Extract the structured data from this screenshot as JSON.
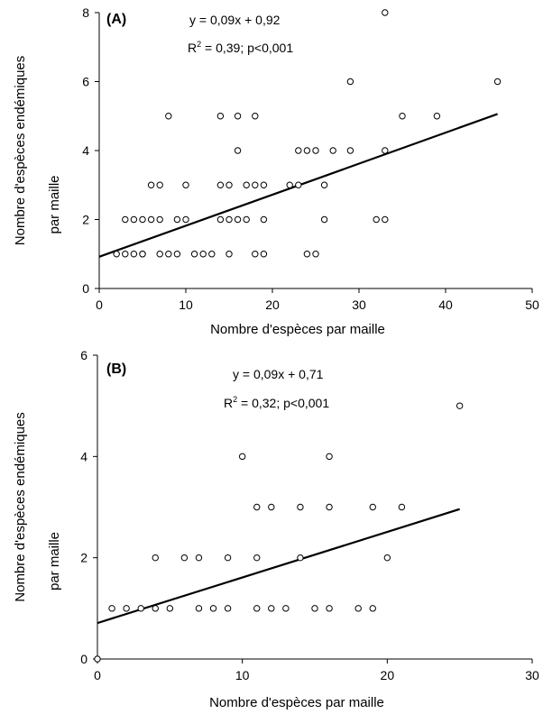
{
  "chart_data": [
    {
      "type": "scatter",
      "panel_label": "(A)",
      "equation": "y = 0,09x + 0,92",
      "r2_label": "R",
      "r2_sup": "2",
      "r2_rest": " = 0,39; p<0,001",
      "xlabel": "Nombre d'espèces par maille",
      "ylabel_line1": "Nombre d'espèces endémiques",
      "ylabel_line2": "par maille",
      "xlim": [
        0,
        50
      ],
      "ylim": [
        0,
        8
      ],
      "xticks": [
        0,
        10,
        20,
        30,
        40,
        50
      ],
      "yticks": [
        0,
        2,
        4,
        6,
        8
      ],
      "grid": false,
      "trendline": {
        "slope": 0.09,
        "intercept": 0.92,
        "x_range": [
          0,
          46
        ]
      },
      "points": [
        [
          2,
          1
        ],
        [
          3,
          1
        ],
        [
          4,
          1
        ],
        [
          5,
          1
        ],
        [
          5,
          1
        ],
        [
          7,
          1
        ],
        [
          8,
          1
        ],
        [
          9,
          1
        ],
        [
          11,
          1
        ],
        [
          12,
          1
        ],
        [
          13,
          1
        ],
        [
          15,
          1
        ],
        [
          18,
          1
        ],
        [
          19,
          1
        ],
        [
          24,
          1
        ],
        [
          25,
          1
        ],
        [
          3,
          2
        ],
        [
          4,
          2
        ],
        [
          5,
          2
        ],
        [
          6,
          2
        ],
        [
          7,
          2
        ],
        [
          9,
          2
        ],
        [
          10,
          2
        ],
        [
          14,
          2
        ],
        [
          15,
          2
        ],
        [
          16,
          2
        ],
        [
          17,
          2
        ],
        [
          19,
          2
        ],
        [
          26,
          2
        ],
        [
          32,
          2
        ],
        [
          33,
          2
        ],
        [
          6,
          3
        ],
        [
          7,
          3
        ],
        [
          10,
          3
        ],
        [
          14,
          3
        ],
        [
          15,
          3
        ],
        [
          17,
          3
        ],
        [
          18,
          3
        ],
        [
          19,
          3
        ],
        [
          22,
          3
        ],
        [
          23,
          3
        ],
        [
          26,
          3
        ],
        [
          16,
          4
        ],
        [
          23,
          4
        ],
        [
          24,
          4
        ],
        [
          25,
          4
        ],
        [
          27,
          4
        ],
        [
          29,
          4
        ],
        [
          33,
          4
        ],
        [
          8,
          5
        ],
        [
          14,
          5
        ],
        [
          16,
          5
        ],
        [
          18,
          5
        ],
        [
          35,
          5
        ],
        [
          39,
          5
        ],
        [
          29,
          6
        ],
        [
          46,
          6
        ],
        [
          33,
          8
        ]
      ]
    },
    {
      "type": "scatter",
      "panel_label": "(B)",
      "equation": "y = 0,09x + 0,71",
      "r2_label": "R",
      "r2_sup": "2",
      "r2_rest": " = 0,32; p<0,001",
      "xlabel": "Nombre d'espèces par maille",
      "ylabel_line1": "Nombre d'espèces endémiques",
      "ylabel_line2": "par maille",
      "xlim": [
        0,
        30
      ],
      "ylim": [
        0,
        6
      ],
      "xticks": [
        0,
        10,
        20,
        30
      ],
      "yticks": [
        0,
        2,
        4,
        6
      ],
      "grid": false,
      "trendline": {
        "slope": 0.09,
        "intercept": 0.71,
        "x_range": [
          0,
          25
        ]
      },
      "points": [
        [
          0,
          0
        ],
        [
          1,
          1
        ],
        [
          2,
          1
        ],
        [
          3,
          1
        ],
        [
          4,
          1
        ],
        [
          5,
          1
        ],
        [
          7,
          1
        ],
        [
          8,
          1
        ],
        [
          9,
          1
        ],
        [
          11,
          1
        ],
        [
          12,
          1
        ],
        [
          13,
          1
        ],
        [
          15,
          1
        ],
        [
          16,
          1
        ],
        [
          18,
          1
        ],
        [
          19,
          1
        ],
        [
          4,
          2
        ],
        [
          6,
          2
        ],
        [
          7,
          2
        ],
        [
          9,
          2
        ],
        [
          11,
          2
        ],
        [
          14,
          2
        ],
        [
          20,
          2
        ],
        [
          11,
          3
        ],
        [
          12,
          3
        ],
        [
          14,
          3
        ],
        [
          16,
          3
        ],
        [
          19,
          3
        ],
        [
          21,
          3
        ],
        [
          10,
          4
        ],
        [
          16,
          4
        ],
        [
          25,
          5
        ]
      ]
    }
  ]
}
